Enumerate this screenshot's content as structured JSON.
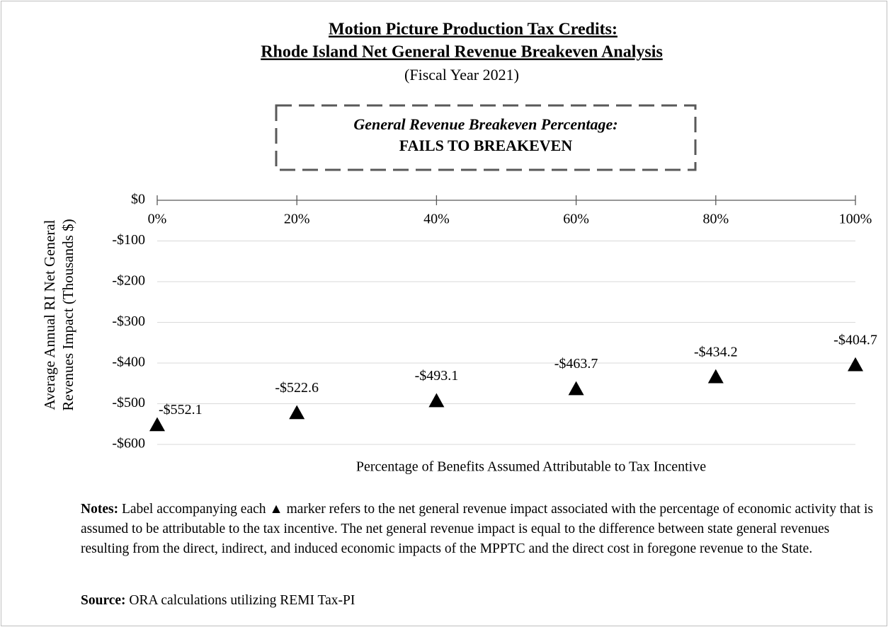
{
  "chart_data": {
    "type": "scatter",
    "title": [
      "Motion Picture Production Tax Credits:",
      "Rhode Island Net General Revenue Breakeven Analysis"
    ],
    "subtitle": "(Fiscal Year 2021)",
    "annotation": [
      "General Revenue Breakeven Percentage:",
      "FAILS TO BREAKEVEN"
    ],
    "ylabel": [
      "Average Annual RI Net General",
      "Revenues Impact (Thousands $)"
    ],
    "xlabel": "Percentage of Benefits Assumed Attributable to Tax Incentive",
    "x": [
      0,
      20,
      40,
      60,
      80,
      100
    ],
    "values": [
      -552.1,
      -522.6,
      -493.1,
      -463.7,
      -434.2,
      -404.7
    ],
    "value_labels": [
      "-$552.1",
      "-$522.6",
      "-$493.1",
      "-$463.7",
      "-$434.2",
      "-$404.7"
    ],
    "color": "#000000",
    "marker": "triangle",
    "xlim": [
      0,
      100
    ],
    "xticks": [
      {
        "value": 0,
        "label": "0%"
      },
      {
        "value": 20,
        "label": "20%"
      },
      {
        "value": 40,
        "label": "40%"
      },
      {
        "value": 60,
        "label": "60%"
      },
      {
        "value": 80,
        "label": "80%"
      },
      {
        "value": 100,
        "label": "100%"
      }
    ],
    "ylim": [
      -600,
      0
    ],
    "yticks": [
      {
        "value": 0,
        "label": "$0"
      },
      {
        "value": -100,
        "label": "-$100"
      },
      {
        "value": -200,
        "label": "-$200"
      },
      {
        "value": -300,
        "label": "-$300"
      },
      {
        "value": -400,
        "label": "-$400"
      },
      {
        "value": -500,
        "label": "-$500"
      },
      {
        "value": -600,
        "label": "-$600"
      }
    ],
    "grid": true
  },
  "notes": {
    "label": "Notes:",
    "text": "Label accompanying each ▲ marker refers to the net general revenue impact associated with the percentage of economic activity that is assumed to be attributable to the tax incentive. The net general revenue impact is equal to the difference between state general revenues resulting from the direct, indirect, and induced economic impacts of the MPPTC and the direct cost in foregone revenue to the State."
  },
  "source": {
    "label": "Source:",
    "text": "ORA calculations utilizing REMI Tax-PI"
  }
}
